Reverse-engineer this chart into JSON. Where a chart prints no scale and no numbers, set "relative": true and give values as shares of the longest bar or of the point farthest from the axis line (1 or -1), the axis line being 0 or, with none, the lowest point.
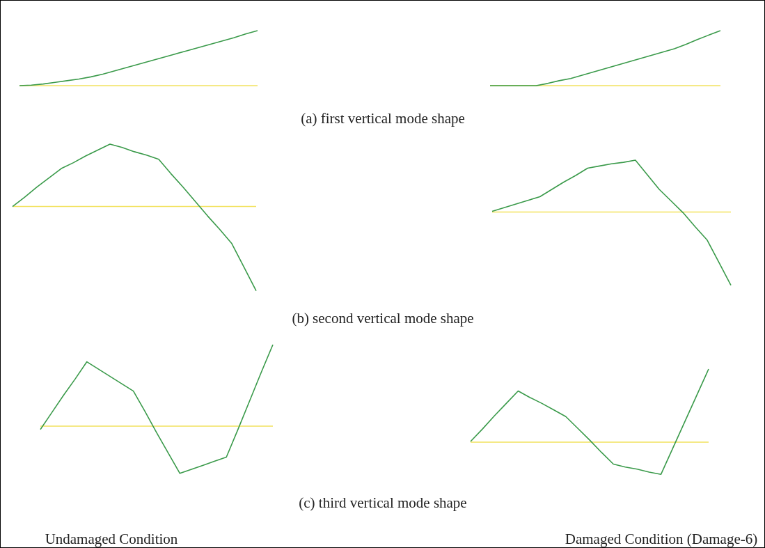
{
  "chart_data": [
    {
      "type": "line",
      "relative": true,
      "categories": [
        null,
        null,
        null,
        null,
        null,
        null,
        null,
        null,
        null,
        null,
        null,
        null,
        null,
        null,
        null,
        null,
        null,
        null,
        null,
        null,
        null
      ],
      "series": [
        {
          "color": "#3a9a4a",
          "values": [
            0,
            0.01,
            0.03,
            0.06,
            0.09,
            0.12,
            0.16,
            0.21,
            0.27,
            0.33,
            0.39,
            0.45,
            0.51,
            0.57,
            0.63,
            0.69,
            0.75,
            0.81,
            0.87,
            0.94,
            1
          ]
        }
      ],
      "ref_lines": [
        {
          "axis": "y",
          "value": 0,
          "color": "#f2e25e"
        }
      ],
      "annotations": [
        "(a) first vertical mode shape"
      ]
    },
    {
      "type": "line",
      "relative": true,
      "categories": [
        null,
        null,
        null,
        null,
        null,
        null,
        null,
        null,
        null,
        null,
        null,
        null,
        null,
        null,
        null,
        null,
        null,
        null,
        null,
        null,
        null
      ],
      "series": [
        {
          "color": "#3a9a4a",
          "values": [
            0,
            0,
            0,
            0,
            0,
            0.04,
            0.09,
            0.13,
            0.19,
            0.25,
            0.31,
            0.37,
            0.43,
            0.49,
            0.55,
            0.61,
            0.67,
            0.75,
            0.84,
            0.92,
            1
          ]
        }
      ],
      "ref_lines": [
        {
          "axis": "y",
          "value": 0,
          "color": "#f2e25e"
        }
      ]
    },
    {
      "type": "line",
      "relative": true,
      "categories": [
        null,
        null,
        null,
        null,
        null,
        null,
        null,
        null,
        null,
        null,
        null,
        null,
        null,
        null,
        null,
        null,
        null,
        null,
        null,
        null,
        null
      ],
      "series": [
        {
          "color": "#3a9a4a",
          "values": [
            0,
            0.11,
            0.23,
            0.34,
            0.45,
            0.52,
            0.6,
            0.67,
            0.74,
            0.7,
            0.65,
            0.61,
            0.56,
            0.39,
            0.23,
            0.06,
            -0.11,
            -0.27,
            -0.44,
            -0.72,
            -1
          ]
        }
      ],
      "ref_lines": [
        {
          "axis": "y",
          "value": 0,
          "color": "#f2e25e"
        }
      ],
      "annotations": [
        "(b) second vertical mode shape"
      ]
    },
    {
      "type": "line",
      "relative": true,
      "categories": [
        null,
        null,
        null,
        null,
        null,
        null,
        null,
        null,
        null,
        null,
        null,
        null,
        null,
        null,
        null,
        null,
        null,
        null,
        null,
        null,
        null
      ],
      "series": [
        {
          "color": "#3a9a4a",
          "values": [
            0.01,
            0.06,
            0.11,
            0.16,
            0.21,
            0.31,
            0.41,
            0.5,
            0.6,
            0.63,
            0.66,
            0.68,
            0.71,
            0.51,
            0.31,
            0.15,
            -0.01,
            -0.2,
            -0.38,
            -0.69,
            -1
          ]
        }
      ],
      "ref_lines": [
        {
          "axis": "y",
          "value": 0,
          "color": "#f2e25e"
        }
      ]
    },
    {
      "type": "line",
      "relative": true,
      "categories": [
        null,
        null,
        null,
        null,
        null,
        null,
        null,
        null,
        null,
        null,
        null,
        null,
        null,
        null,
        null,
        null,
        null,
        null,
        null,
        null,
        null
      ],
      "series": [
        {
          "color": "#3a9a4a",
          "values": [
            -0.04,
            0.17,
            0.38,
            0.58,
            0.79,
            0.7,
            0.61,
            0.52,
            0.43,
            0.18,
            -0.08,
            -0.33,
            -0.58,
            -0.53,
            -0.48,
            -0.43,
            -0.38,
            -0.04,
            0.31,
            0.66,
            1
          ]
        }
      ],
      "ref_lines": [
        {
          "axis": "y",
          "value": 0,
          "color": "#f2e25e"
        }
      ],
      "annotations": [
        "(c) third vertical mode shape",
        "Undamaged Condition"
      ]
    },
    {
      "type": "line",
      "relative": true,
      "categories": [
        null,
        null,
        null,
        null,
        null,
        null,
        null,
        null,
        null,
        null,
        null,
        null,
        null,
        null,
        null,
        null,
        null,
        null,
        null,
        null,
        null
      ],
      "series": [
        {
          "color": "#3a9a4a",
          "values": [
            0.01,
            0.18,
            0.36,
            0.53,
            0.7,
            0.61,
            0.53,
            0.44,
            0.35,
            0.19,
            0.03,
            -0.14,
            -0.3,
            -0.34,
            -0.37,
            -0.41,
            -0.44,
            -0.08,
            0.28,
            0.64,
            1
          ]
        }
      ],
      "ref_lines": [
        {
          "axis": "y",
          "value": 0,
          "color": "#f2e25e"
        }
      ],
      "annotations": [
        "Damaged Condition (Damage-6)"
      ]
    }
  ]
}
